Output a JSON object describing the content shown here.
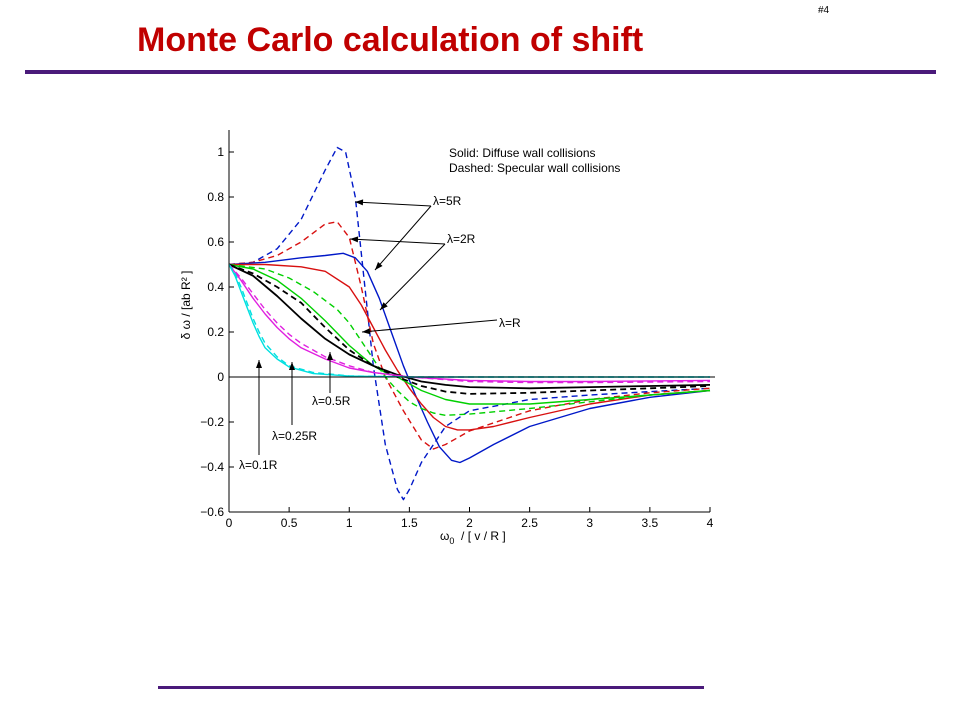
{
  "slide": {
    "title": "Monte Carlo calculation of shift",
    "number": "#4"
  },
  "colors": {
    "title": "#c00000",
    "rule": "#4a1a7a",
    "blue": "#0018c8",
    "red": "#d81010",
    "green": "#00d000",
    "black": "#000000",
    "magenta": "#e020e0",
    "cyan": "#00e0e0"
  },
  "chart_data": {
    "type": "line",
    "xlabel": "ω₀ / [ v / R ]",
    "xlabel_main": "ω",
    "xlabel_sub": "0",
    "xlabel_rest": "  / [ v / R ]",
    "ylabel": "δ ω  / [ab R² ]",
    "xlim": [
      0,
      4
    ],
    "ylim": [
      -0.6,
      1.1
    ],
    "xticks": [
      0,
      0.5,
      1,
      1.5,
      2,
      2.5,
      3,
      3.5,
      4
    ],
    "yticks": [
      -0.6,
      -0.4,
      -0.2,
      0,
      0.2,
      0.4,
      0.6,
      0.8,
      1
    ],
    "xtick_labels": [
      "0",
      "0.5",
      "1",
      "1.5",
      "2",
      "2.5",
      "3",
      "3.5",
      "4"
    ],
    "ytick_labels": [
      "−0.6",
      "−0.4",
      "−0.2",
      "0",
      "0.2",
      "0.4",
      "0.6",
      "0.8",
      "1"
    ],
    "grid": false,
    "legend": [
      "Solid: Diffuse wall collisions",
      "Dashed: Specular wall collisions"
    ],
    "annotations": [
      {
        "text": "λ=5R"
      },
      {
        "text": "λ=2R"
      },
      {
        "text": "λ=R"
      },
      {
        "text": "λ=0.5R"
      },
      {
        "text": "λ=0.25R"
      },
      {
        "text": "λ=0.1R"
      }
    ],
    "series": [
      {
        "color": "blue",
        "style": "dashed",
        "x": [
          0,
          0.2,
          0.4,
          0.6,
          0.8,
          0.9,
          0.97,
          1.05,
          1.1,
          1.2,
          1.3,
          1.4,
          1.45,
          1.5,
          1.6,
          1.8,
          2.0,
          2.5,
          3.0,
          3.5,
          4.0
        ],
        "y": [
          0.5,
          0.51,
          0.57,
          0.7,
          0.92,
          1.02,
          1.0,
          0.8,
          0.55,
          0.05,
          -0.3,
          -0.5,
          -0.545,
          -0.5,
          -0.38,
          -0.22,
          -0.15,
          -0.1,
          -0.08,
          -0.065,
          -0.05
        ]
      },
      {
        "color": "red",
        "style": "dashed",
        "x": [
          0,
          0.2,
          0.4,
          0.6,
          0.8,
          0.9,
          1.0,
          1.1,
          1.2,
          1.3,
          1.45,
          1.6,
          1.7,
          1.8,
          2.0,
          2.5,
          3.0,
          3.5,
          4.0
        ],
        "y": [
          0.5,
          0.51,
          0.54,
          0.6,
          0.68,
          0.69,
          0.62,
          0.4,
          0.15,
          0.0,
          -0.15,
          -0.28,
          -0.32,
          -0.3,
          -0.24,
          -0.15,
          -0.1,
          -0.07,
          -0.05
        ]
      },
      {
        "color": "blue",
        "style": "solid",
        "x": [
          0,
          0.3,
          0.6,
          0.8,
          0.95,
          1.05,
          1.15,
          1.25,
          1.35,
          1.45,
          1.55,
          1.65,
          1.75,
          1.85,
          1.92,
          2.0,
          2.2,
          2.5,
          3.0,
          3.5,
          4.0
        ],
        "y": [
          0.5,
          0.51,
          0.53,
          0.54,
          0.55,
          0.53,
          0.47,
          0.35,
          0.2,
          0.05,
          -0.08,
          -0.2,
          -0.31,
          -0.37,
          -0.38,
          -0.36,
          -0.3,
          -0.22,
          -0.14,
          -0.09,
          -0.06
        ]
      },
      {
        "color": "red",
        "style": "solid",
        "x": [
          0,
          0.3,
          0.6,
          0.8,
          1.0,
          1.1,
          1.2,
          1.3,
          1.4,
          1.5,
          1.6,
          1.7,
          1.8,
          1.9,
          2.0,
          2.2,
          2.5,
          3.0,
          3.5,
          4.0
        ],
        "y": [
          0.5,
          0.5,
          0.49,
          0.47,
          0.4,
          0.32,
          0.22,
          0.12,
          0.03,
          -0.05,
          -0.12,
          -0.18,
          -0.22,
          -0.235,
          -0.235,
          -0.22,
          -0.18,
          -0.12,
          -0.08,
          -0.06
        ]
      },
      {
        "color": "green",
        "style": "dashed",
        "x": [
          0,
          0.3,
          0.5,
          0.7,
          0.9,
          1.0,
          1.1,
          1.2,
          1.3,
          1.4,
          1.5,
          1.6,
          1.7,
          1.8,
          2.0,
          2.5,
          3.0,
          3.5,
          4.0
        ],
        "y": [
          0.5,
          0.48,
          0.44,
          0.38,
          0.3,
          0.24,
          0.16,
          0.08,
          0.0,
          -0.06,
          -0.11,
          -0.14,
          -0.16,
          -0.17,
          -0.165,
          -0.14,
          -0.11,
          -0.08,
          -0.06
        ]
      },
      {
        "color": "green",
        "style": "solid",
        "x": [
          0,
          0.2,
          0.4,
          0.6,
          0.8,
          1.0,
          1.2,
          1.3,
          1.4,
          1.5,
          1.6,
          1.8,
          2.0,
          2.5,
          3.0,
          3.5,
          4.0
        ],
        "y": [
          0.5,
          0.48,
          0.43,
          0.35,
          0.25,
          0.14,
          0.05,
          0.02,
          0.0,
          -0.03,
          -0.06,
          -0.1,
          -0.12,
          -0.12,
          -0.1,
          -0.08,
          -0.06
        ]
      },
      {
        "color": "black",
        "style": "dashed",
        "x": [
          0,
          0.2,
          0.4,
          0.6,
          0.8,
          1.0,
          1.2,
          1.4,
          1.6,
          1.8,
          2.0,
          2.5,
          3.0,
          3.5,
          4.0
        ],
        "y": [
          0.5,
          0.46,
          0.4,
          0.33,
          0.22,
          0.12,
          0.05,
          0.0,
          -0.04,
          -0.065,
          -0.075,
          -0.07,
          -0.06,
          -0.05,
          -0.04
        ]
      },
      {
        "color": "black",
        "style": "solid",
        "x": [
          0,
          0.2,
          0.4,
          0.6,
          0.8,
          1.0,
          1.2,
          1.4,
          1.6,
          1.8,
          2.0,
          2.5,
          3.0,
          3.5,
          4.0
        ],
        "y": [
          0.5,
          0.45,
          0.36,
          0.26,
          0.17,
          0.1,
          0.05,
          0.01,
          -0.02,
          -0.035,
          -0.045,
          -0.05,
          -0.045,
          -0.04,
          -0.035
        ]
      },
      {
        "color": "magenta",
        "style": "dashed",
        "x": [
          0,
          0.1,
          0.2,
          0.3,
          0.4,
          0.5,
          0.6,
          0.8,
          1.0,
          1.2,
          1.5,
          2.0,
          2.5,
          3.0,
          4.0
        ],
        "y": [
          0.5,
          0.44,
          0.37,
          0.3,
          0.24,
          0.19,
          0.15,
          0.09,
          0.05,
          0.02,
          0.0,
          -0.02,
          -0.025,
          -0.025,
          -0.02
        ]
      },
      {
        "color": "magenta",
        "style": "solid",
        "x": [
          0,
          0.1,
          0.2,
          0.3,
          0.4,
          0.5,
          0.6,
          0.8,
          1.0,
          1.2,
          1.5,
          2.0,
          2.5,
          3.0,
          4.0
        ],
        "y": [
          0.5,
          0.43,
          0.35,
          0.28,
          0.22,
          0.17,
          0.13,
          0.08,
          0.04,
          0.02,
          0.0,
          -0.015,
          -0.02,
          -0.02,
          -0.015
        ]
      },
      {
        "color": "cyan",
        "style": "dashed",
        "x": [
          0,
          0.05,
          0.1,
          0.15,
          0.2,
          0.25,
          0.3,
          0.4,
          0.5,
          0.7,
          1.0,
          1.5,
          2.0,
          4.0
        ],
        "y": [
          0.5,
          0.46,
          0.4,
          0.33,
          0.26,
          0.2,
          0.15,
          0.09,
          0.05,
          0.02,
          0.005,
          0.0,
          0.0,
          0.0
        ]
      },
      {
        "color": "cyan",
        "style": "solid",
        "x": [
          0,
          0.05,
          0.1,
          0.15,
          0.2,
          0.25,
          0.3,
          0.4,
          0.5,
          0.7,
          1.0,
          1.5,
          2.0,
          4.0
        ],
        "y": [
          0.5,
          0.45,
          0.38,
          0.31,
          0.24,
          0.18,
          0.13,
          0.08,
          0.045,
          0.015,
          0.004,
          0.0,
          0.0,
          0.0
        ]
      }
    ]
  }
}
